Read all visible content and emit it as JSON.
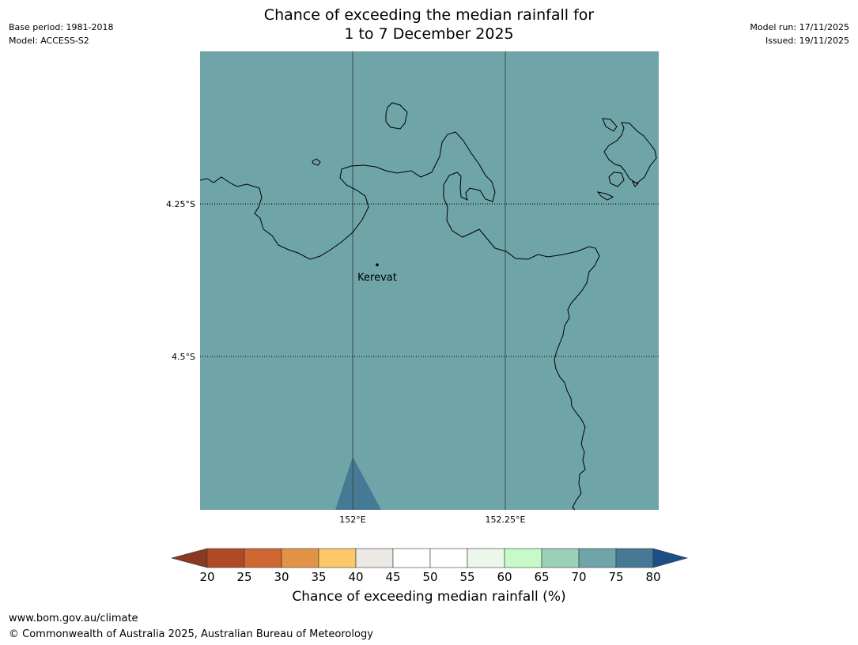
{
  "header": {
    "title_line1": "Chance of exceeding the median rainfall for",
    "title_line2": "1 to 7 December 2025",
    "base_period": "Base period: 1981-2018",
    "model": "Model: ACCESS-S2",
    "model_run": "Model run: 17/11/2025",
    "issued": "Issued: 19/11/2025"
  },
  "map": {
    "background_color": "#6fa4a8",
    "overlay_color": "#457994",
    "lat_labels": [
      "4.25°S",
      "4.5°S"
    ],
    "lon_labels": [
      "152°E",
      "152.25°E"
    ],
    "place_label": "Kerevat"
  },
  "colorbar": {
    "ticks": [
      "20",
      "25",
      "30",
      "35",
      "40",
      "45",
      "50",
      "55",
      "60",
      "65",
      "70",
      "75",
      "80"
    ],
    "colors": [
      "#b04a26",
      "#cf6733",
      "#e39347",
      "#fdc86a",
      "#ece8e3",
      "#ffffff",
      "#ffffff",
      "#eaf7ea",
      "#c8fac8",
      "#9dd0b8",
      "#6fa4a8",
      "#457994"
    ],
    "under_color": "#8a3a22",
    "over_color": "#1b4f86",
    "label": "Chance of exceeding median rainfall (%)"
  },
  "footer": {
    "url": "www.bom.gov.au/climate",
    "copyright": "© Commonwealth of Australia 2025, Australian Bureau of Meteorology"
  }
}
